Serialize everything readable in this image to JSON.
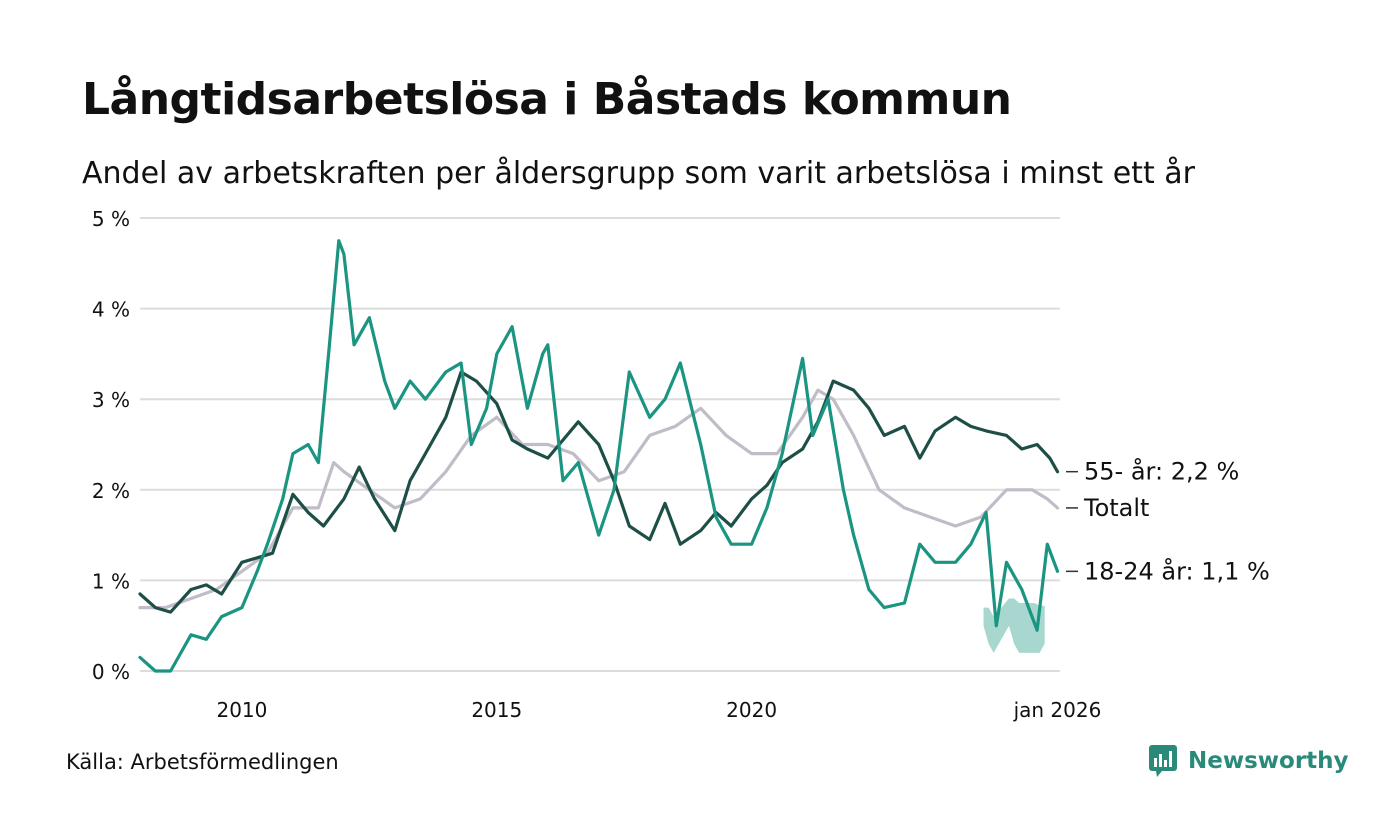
{
  "title": "Långtidsarbetslösa i Båstads kommun",
  "subtitle": "Andel av arbetskraften per åldersgrupp som varit arbetslösa i minst ett år",
  "source": "Källa: Arbetsförmedlingen",
  "brand": {
    "name": "Newsworthy",
    "color": "#2a8a7a"
  },
  "chart_data": {
    "type": "line",
    "title": "Långtidsarbetslösa i Båstads kommun",
    "ylabel": "",
    "xlabel": "",
    "ylim": [
      0,
      5
    ],
    "xlim": [
      2008.0,
      2026.05
    ],
    "y_ticks": [
      0,
      1,
      2,
      3,
      4,
      5
    ],
    "y_tick_labels": [
      "0 %",
      "1 %",
      "2 %",
      "3 %",
      "4 %",
      "5 %"
    ],
    "x_ticks": [
      2010.0,
      2015.0,
      2020.0,
      2026.0
    ],
    "x_tick_labels": [
      "2010",
      "2015",
      "2020",
      "jan 2026"
    ],
    "grid": true,
    "series": [
      {
        "name": "Totalt",
        "label": "Totalt",
        "color": "#c0bcc8",
        "x": [
          2008.0,
          2008.5,
          2009.0,
          2009.5,
          2010.0,
          2010.5,
          2011.0,
          2011.5,
          2011.8,
          2012.0,
          2012.5,
          2013.0,
          2013.5,
          2014.0,
          2014.5,
          2015.0,
          2015.5,
          2016.0,
          2016.5,
          2017.0,
          2017.5,
          2018.0,
          2018.5,
          2019.0,
          2019.5,
          2020.0,
          2020.5,
          2021.0,
          2021.3,
          2021.6,
          2022.0,
          2022.5,
          2023.0,
          2023.5,
          2024.0,
          2024.5,
          2025.0,
          2025.5,
          2025.8,
          2026.0
        ],
        "values": [
          0.7,
          0.7,
          0.8,
          0.9,
          1.1,
          1.3,
          1.8,
          1.8,
          2.3,
          2.2,
          2.0,
          1.8,
          1.9,
          2.2,
          2.6,
          2.8,
          2.5,
          2.5,
          2.4,
          2.1,
          2.2,
          2.6,
          2.7,
          2.9,
          2.6,
          2.4,
          2.4,
          2.8,
          3.1,
          3.0,
          2.6,
          2.0,
          1.8,
          1.7,
          1.6,
          1.7,
          2.0,
          2.0,
          1.9,
          1.8
        ]
      },
      {
        "name": "55- år",
        "label": "55- år: 2,2 %",
        "color": "#1e4f47",
        "x": [
          2008.0,
          2008.3,
          2008.6,
          2009.0,
          2009.3,
          2009.6,
          2010.0,
          2010.3,
          2010.6,
          2011.0,
          2011.3,
          2011.6,
          2012.0,
          2012.3,
          2012.6,
          2013.0,
          2013.3,
          2013.6,
          2014.0,
          2014.3,
          2014.6,
          2015.0,
          2015.3,
          2015.6,
          2016.0,
          2016.3,
          2016.6,
          2017.0,
          2017.3,
          2017.6,
          2018.0,
          2018.3,
          2018.6,
          2019.0,
          2019.3,
          2019.6,
          2020.0,
          2020.3,
          2020.6,
          2021.0,
          2021.3,
          2021.6,
          2022.0,
          2022.3,
          2022.6,
          2023.0,
          2023.3,
          2023.6,
          2024.0,
          2024.3,
          2024.6,
          2025.0,
          2025.3,
          2025.6,
          2025.85,
          2026.0
        ],
        "values": [
          0.85,
          0.7,
          0.65,
          0.9,
          0.95,
          0.85,
          1.2,
          1.25,
          1.3,
          1.95,
          1.75,
          1.6,
          1.9,
          2.25,
          1.9,
          1.55,
          2.1,
          2.4,
          2.8,
          3.3,
          3.2,
          2.95,
          2.55,
          2.45,
          2.35,
          2.55,
          2.75,
          2.5,
          2.1,
          1.6,
          1.45,
          1.85,
          1.4,
          1.55,
          1.75,
          1.6,
          1.9,
          2.05,
          2.3,
          2.45,
          2.75,
          3.2,
          3.1,
          2.9,
          2.6,
          2.7,
          2.35,
          2.65,
          2.8,
          2.7,
          2.65,
          2.6,
          2.45,
          2.5,
          2.35,
          2.2
        ]
      },
      {
        "name": "18-24 år",
        "label": "18-24 år: 1,1 %",
        "color": "#1b9582",
        "x": [
          2008.0,
          2008.3,
          2008.6,
          2009.0,
          2009.3,
          2009.6,
          2010.0,
          2010.3,
          2010.5,
          2010.8,
          2011.0,
          2011.3,
          2011.5,
          2011.7,
          2011.9,
          2012.0,
          2012.2,
          2012.5,
          2012.8,
          2013.0,
          2013.3,
          2013.6,
          2014.0,
          2014.3,
          2014.5,
          2014.8,
          2015.0,
          2015.3,
          2015.6,
          2015.9,
          2016.0,
          2016.3,
          2016.6,
          2017.0,
          2017.3,
          2017.6,
          2018.0,
          2018.3,
          2018.6,
          2019.0,
          2019.3,
          2019.6,
          2020.0,
          2020.3,
          2020.6,
          2021.0,
          2021.2,
          2021.5,
          2021.8,
          2022.0,
          2022.3,
          2022.6,
          2023.0,
          2023.3,
          2023.6,
          2024.0,
          2024.3,
          2024.6,
          2024.8,
          2025.0,
          2025.3,
          2025.6,
          2025.8,
          2026.0
        ],
        "values": [
          0.15,
          0.0,
          0.0,
          0.4,
          0.35,
          0.6,
          0.7,
          1.1,
          1.4,
          1.9,
          2.4,
          2.5,
          2.3,
          3.5,
          4.75,
          4.6,
          3.6,
          3.9,
          3.2,
          2.9,
          3.2,
          3.0,
          3.3,
          3.4,
          2.5,
          2.9,
          3.5,
          3.8,
          2.9,
          3.5,
          3.6,
          2.1,
          2.3,
          1.5,
          2.0,
          3.3,
          2.8,
          3.0,
          3.4,
          2.5,
          1.7,
          1.4,
          1.4,
          1.8,
          2.4,
          3.45,
          2.6,
          3.0,
          2.0,
          1.5,
          0.9,
          0.7,
          0.75,
          1.4,
          1.2,
          1.2,
          1.4,
          1.75,
          0.5,
          1.2,
          0.9,
          0.45,
          1.4,
          1.1
        ]
      }
    ],
    "uncertainty_band": {
      "series": "18-24 år",
      "color": "#9dd3ca",
      "x": [
        2024.55,
        2024.65,
        2024.75,
        2025.05,
        2025.15,
        2025.25,
        2025.35,
        2025.45,
        2025.55,
        2025.65,
        2025.75
      ],
      "low": [
        0.5,
        0.3,
        0.2,
        0.5,
        0.3,
        0.2,
        0.2,
        0.2,
        0.2,
        0.2,
        0.3
      ],
      "high": [
        0.7,
        0.7,
        0.6,
        0.8,
        0.8,
        0.75,
        0.75,
        0.75,
        0.75,
        0.72,
        0.72
      ]
    }
  }
}
